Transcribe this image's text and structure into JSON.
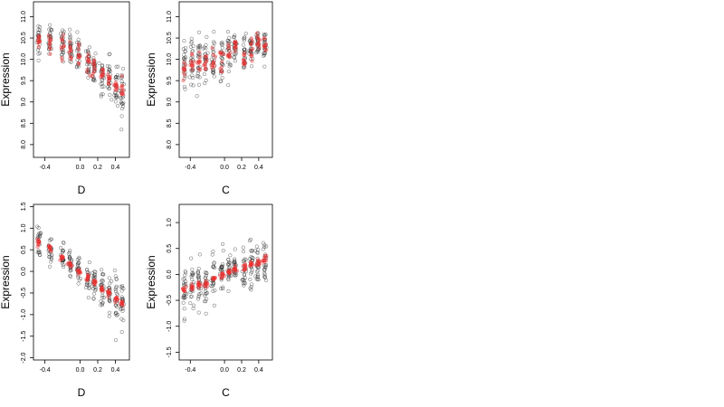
{
  "chart_data": [
    {
      "type": "scatter",
      "xlabel": "D",
      "ylabel": "Expression",
      "xlim": [
        -0.53,
        0.56
      ],
      "ylim": [
        7.7,
        11.35
      ],
      "xticks": [
        -0.4,
        0.0,
        0.2,
        0.4
      ],
      "xtick_labels": [
        "-0.4",
        "0.0",
        "0.2",
        "0.4"
      ],
      "yticks": [
        8.0,
        8.5,
        9.0,
        9.5,
        10.0,
        10.5,
        11.0
      ],
      "ytick_labels": [
        "8.0",
        "8.5",
        "9.0",
        "9.5",
        "10.0",
        "10.5",
        "11.0"
      ],
      "grid": false,
      "colors": {
        "observed": "#333333",
        "fitted": "#ee3030"
      },
      "series": [
        {
          "x": [
            -0.47,
            -0.34,
            -0.2,
            -0.11,
            -0.02,
            0.09,
            0.16,
            0.25,
            0.33,
            0.41,
            0.48
          ],
          "y": [
            10.5,
            10.4,
            10.35,
            10.2,
            10.15,
            9.95,
            9.8,
            9.65,
            9.55,
            9.35,
            9.2
          ],
          "spread": [
            0.4,
            0.4,
            0.4,
            0.4,
            0.45,
            0.45,
            0.45,
            0.45,
            0.5,
            0.55,
            0.5
          ],
          "n": 24
        },
        {
          "x": [
            -0.47,
            -0.34,
            -0.2,
            -0.11,
            -0.02,
            0.09,
            0.16,
            0.25,
            0.33,
            0.41,
            0.48
          ],
          "y": [
            10.45,
            10.4,
            10.3,
            10.2,
            10.1,
            9.9,
            9.8,
            9.65,
            9.55,
            9.4,
            9.25
          ],
          "spread": [
            0.25,
            0.25,
            0.25,
            0.22,
            0.22,
            0.22,
            0.22,
            0.22,
            0.22,
            0.22,
            0.22
          ],
          "n": 10
        }
      ]
    },
    {
      "type": "scatter",
      "xlabel": "C",
      "ylabel": "Expression",
      "xlim": [
        -0.53,
        0.56
      ],
      "ylim": [
        7.7,
        11.35
      ],
      "xticks": [
        -0.4,
        0.0,
        0.2,
        0.4
      ],
      "xtick_labels": [
        "-0.4",
        "0.0",
        "0.2",
        "0.4"
      ],
      "yticks": [
        8.0,
        8.5,
        9.0,
        9.5,
        10.0,
        10.5,
        11.0
      ],
      "ytick_labels": [
        "8.0",
        "8.5",
        "9.0",
        "9.5",
        "10.0",
        "10.5",
        "11.0"
      ],
      "grid": false,
      "colors": {
        "observed": "#333333",
        "fitted": "#ee3030"
      },
      "series": [
        {
          "x": [
            -0.47,
            -0.38,
            -0.3,
            -0.22,
            -0.13,
            -0.03,
            0.05,
            0.12,
            0.23,
            0.31,
            0.39,
            0.47
          ],
          "y": [
            9.8,
            9.85,
            9.9,
            9.95,
            10.05,
            10.0,
            10.2,
            10.3,
            10.1,
            10.2,
            10.35,
            10.4
          ],
          "spread": [
            0.6,
            0.6,
            0.6,
            0.6,
            0.5,
            0.5,
            0.4,
            0.3,
            0.5,
            0.4,
            0.4,
            0.4
          ],
          "n": 24
        },
        {
          "x": [
            -0.47,
            -0.38,
            -0.3,
            -0.22,
            -0.13,
            -0.03,
            0.05,
            0.12,
            0.23,
            0.31,
            0.39,
            0.47
          ],
          "y": [
            9.75,
            9.85,
            9.9,
            9.95,
            10.05,
            10.0,
            10.2,
            10.3,
            10.0,
            10.2,
            10.4,
            10.3
          ],
          "spread": [
            0.3,
            0.3,
            0.3,
            0.3,
            0.3,
            0.3,
            0.22,
            0.2,
            0.3,
            0.25,
            0.25,
            0.25
          ],
          "n": 10
        }
      ]
    },
    {
      "type": "scatter",
      "xlabel": "D",
      "ylabel": "Expression",
      "xlim": [
        -0.53,
        0.56
      ],
      "ylim": [
        -2.05,
        1.55
      ],
      "xticks": [
        -0.4,
        0.0,
        0.2,
        0.4
      ],
      "xtick_labels": [
        "-0.4",
        "0.0",
        "0.2",
        "0.4"
      ],
      "yticks": [
        -2.0,
        -1.5,
        -1.0,
        -0.5,
        0.0,
        0.5,
        1.0,
        1.5
      ],
      "ytick_labels": [
        "-2.0",
        "-1.5",
        "-1.0",
        "-0.5",
        "0.0",
        "0.5",
        "1.0",
        "1.5"
      ],
      "grid": false,
      "colors": {
        "observed": "#333333",
        "fitted": "#ee3030"
      },
      "series": [
        {
          "x": [
            -0.47,
            -0.34,
            -0.2,
            -0.11,
            -0.02,
            0.09,
            0.16,
            0.25,
            0.33,
            0.41,
            0.48
          ],
          "y": [
            0.7,
            0.5,
            0.3,
            0.15,
            0.0,
            -0.15,
            -0.25,
            -0.4,
            -0.5,
            -0.65,
            -0.75
          ],
          "spread": [
            0.35,
            0.35,
            0.35,
            0.35,
            0.35,
            0.35,
            0.35,
            0.4,
            0.45,
            0.6,
            0.5
          ],
          "n": 24
        },
        {
          "x": [
            -0.47,
            -0.34,
            -0.2,
            -0.11,
            -0.02,
            0.09,
            0.16,
            0.25,
            0.33,
            0.41,
            0.48
          ],
          "y": [
            0.68,
            0.52,
            0.32,
            0.16,
            0.0,
            -0.14,
            -0.26,
            -0.4,
            -0.5,
            -0.64,
            -0.74
          ],
          "spread": [
            0.08,
            0.07,
            0.07,
            0.06,
            0.06,
            0.06,
            0.06,
            0.06,
            0.06,
            0.07,
            0.07
          ],
          "n": 10
        }
      ]
    },
    {
      "type": "scatter",
      "xlabel": "C",
      "ylabel": "Expression",
      "xlim": [
        -0.53,
        0.56
      ],
      "ylim": [
        -1.65,
        1.35
      ],
      "xticks": [
        -0.4,
        0.0,
        0.2,
        0.4
      ],
      "xtick_labels": [
        "-0.4",
        "0.0",
        "0.2",
        "0.4"
      ],
      "yticks": [
        -1.5,
        -1.0,
        -0.5,
        0.0,
        0.5,
        1.0
      ],
      "ytick_labels": [
        "-1.5",
        "-1.0",
        "-0.5",
        "0.0",
        "0.5",
        "1.0"
      ],
      "grid": false,
      "colors": {
        "observed": "#333333",
        "fitted": "#ee3030"
      },
      "series": [
        {
          "x": [
            -0.47,
            -0.38,
            -0.3,
            -0.22,
            -0.13,
            -0.03,
            0.05,
            0.12,
            0.23,
            0.31,
            0.39,
            0.47
          ],
          "y": [
            -0.3,
            -0.25,
            -0.2,
            -0.2,
            -0.1,
            0.0,
            0.05,
            0.1,
            0.1,
            0.15,
            0.2,
            0.25
          ],
          "spread": [
            0.5,
            0.5,
            0.45,
            0.45,
            0.4,
            0.4,
            0.35,
            0.3,
            0.45,
            0.4,
            0.4,
            0.4
          ],
          "n": 24
        },
        {
          "x": [
            -0.47,
            -0.38,
            -0.3,
            -0.22,
            -0.13,
            -0.03,
            0.05,
            0.12,
            0.23,
            0.31,
            0.39,
            0.47
          ],
          "y": [
            -0.28,
            -0.24,
            -0.2,
            -0.16,
            -0.1,
            -0.02,
            0.05,
            0.1,
            0.12,
            0.18,
            0.22,
            0.28
          ],
          "spread": [
            0.08,
            0.07,
            0.07,
            0.07,
            0.06,
            0.06,
            0.06,
            0.06,
            0.07,
            0.07,
            0.08,
            0.08
          ],
          "n": 10
        }
      ]
    }
  ]
}
